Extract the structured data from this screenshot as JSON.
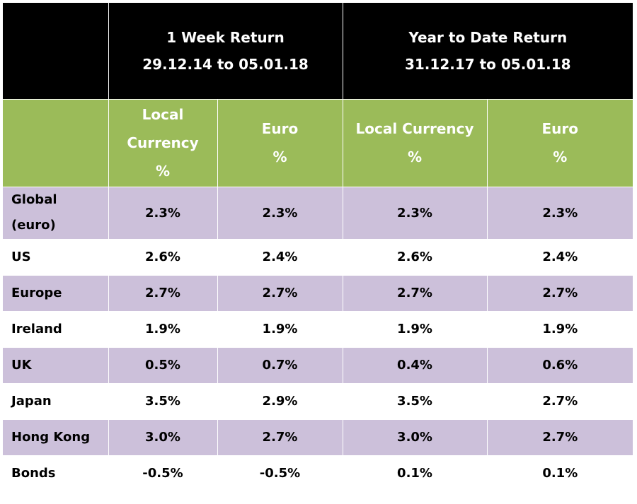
{
  "header": {
    "one_week": {
      "title": "1 Week Return",
      "period": "29.12.14 to 05.01.18"
    },
    "ytd": {
      "title": "Year to Date Return",
      "period": "31.12.17 to 05.01.18"
    }
  },
  "subheader": {
    "local_line1": "Local",
    "local_line2": "Currency",
    "local_full": "Local Currency",
    "euro": "Euro",
    "pct": "%"
  },
  "rows": [
    {
      "label_line1": "Global",
      "label_line2": "(euro)",
      "week_local": "2.3%",
      "week_euro": "2.3%",
      "ytd_local": "2.3%",
      "ytd_euro": "2.3%"
    },
    {
      "label": "US",
      "week_local": "2.6%",
      "week_euro": "2.4%",
      "ytd_local": "2.6%",
      "ytd_euro": "2.4%"
    },
    {
      "label": "Europe",
      "week_local": "2.7%",
      "week_euro": "2.7%",
      "ytd_local": "2.7%",
      "ytd_euro": "2.7%"
    },
    {
      "label": "Ireland",
      "week_local": "1.9%",
      "week_euro": "1.9%",
      "ytd_local": "1.9%",
      "ytd_euro": "1.9%"
    },
    {
      "label": "UK",
      "week_local": "0.5%",
      "week_euro": "0.7%",
      "ytd_local": "0.4%",
      "ytd_euro": "0.6%"
    },
    {
      "label": "Japan",
      "week_local": "3.5%",
      "week_euro": "2.9%",
      "ytd_local": "3.5%",
      "ytd_euro": "2.7%"
    },
    {
      "label": "Hong Kong",
      "week_local": "3.0%",
      "week_euro": "2.7%",
      "ytd_local": "3.0%",
      "ytd_euro": "2.7%"
    },
    {
      "label": "Bonds",
      "week_local": "-0.5%",
      "week_euro": "-0.5%",
      "ytd_local": "0.1%",
      "ytd_euro": "0.1%"
    }
  ],
  "colors": {
    "header_bg": "#000000",
    "subheader_bg": "#9bbb59",
    "row_shade": "#ccc0da"
  }
}
